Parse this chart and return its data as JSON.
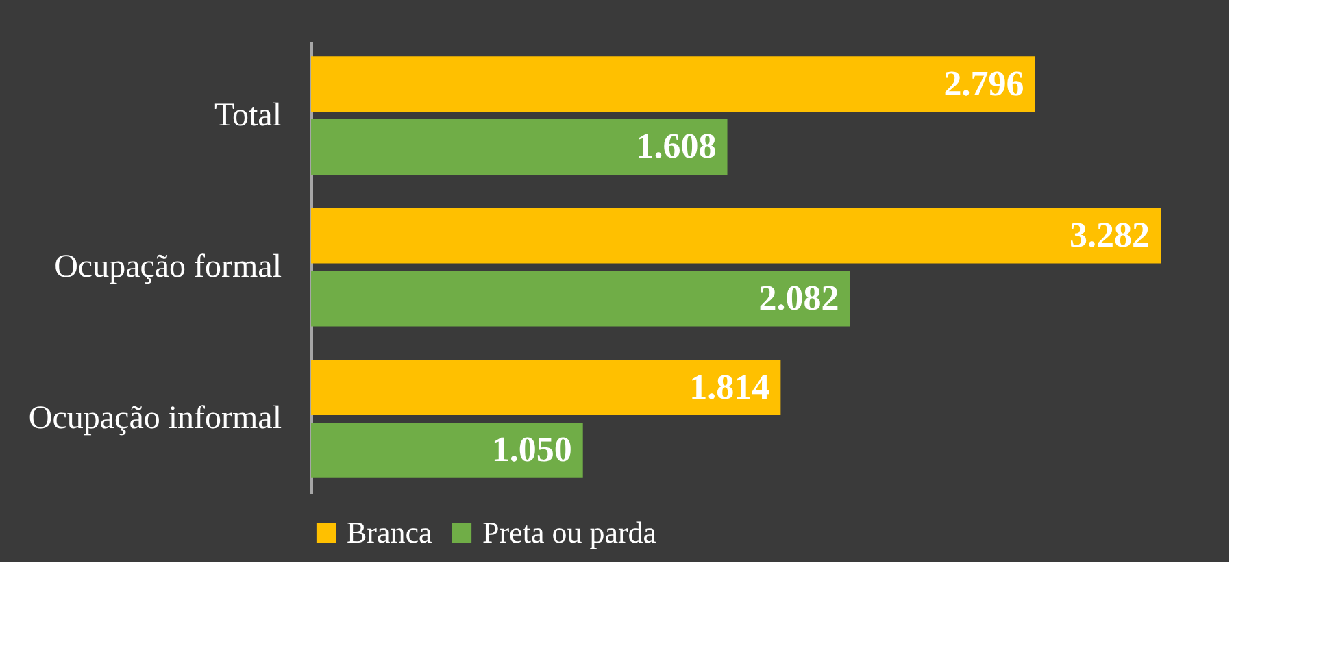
{
  "chart_data": {
    "type": "bar",
    "orientation": "horizontal",
    "categories": [
      "Total",
      "Ocupação formal",
      "Ocupação informal"
    ],
    "series": [
      {
        "name": "Branca",
        "color": "#ffc000",
        "values": [
          2796,
          3282,
          1814
        ],
        "value_labels": [
          "2.796",
          "3.282",
          "1.814"
        ]
      },
      {
        "name": "Preta ou parda",
        "color": "#70ad47",
        "values": [
          1608,
          2082,
          1050
        ],
        "value_labels": [
          "1.608",
          "2.082",
          "1.050"
        ]
      }
    ],
    "legend": "bottom"
  }
}
